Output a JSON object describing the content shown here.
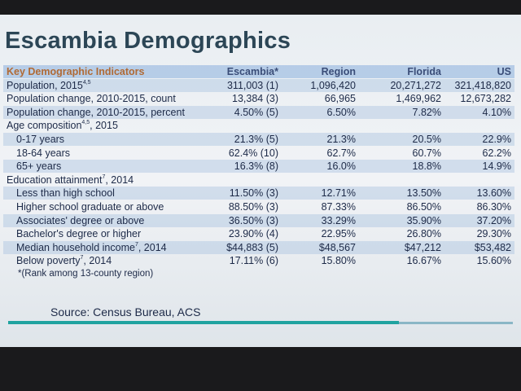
{
  "title": "Escambia Demographics",
  "table": {
    "header": [
      "Key Demographic Indicators",
      "Escambia*",
      "Region",
      "Florida",
      "US"
    ],
    "rows": [
      {
        "label": "Population, 2015",
        "sup": "4,5",
        "cells": [
          "311,003 (1)",
          "1,096,420",
          "20,271,272",
          "321,418,820"
        ]
      },
      {
        "label": "Population change, 2010-2015, count",
        "cells": [
          "13,384 (3)",
          "66,965",
          "1,469,962",
          "12,673,282"
        ]
      },
      {
        "label": "Population change, 2010-2015, percent",
        "cells": [
          "4.50% (5)",
          "6.50%",
          "7.82%",
          "4.10%"
        ]
      },
      {
        "label": "Age composition",
        "sup": "4,5",
        "suffix": ", 2015"
      },
      {
        "label": "0-17 years",
        "indent": true,
        "cells": [
          "21.3% (5)",
          "21.3%",
          "20.5%",
          "22.9%"
        ]
      },
      {
        "label": "18-64 years",
        "indent": true,
        "cells": [
          "62.4% (10)",
          "62.7%",
          "60.7%",
          "62.2%"
        ]
      },
      {
        "label": "65+ years",
        "indent": true,
        "cells": [
          "16.3% (8)",
          "16.0%",
          "18.8%",
          "14.9%"
        ]
      },
      {
        "label": "Education attainment",
        "sup": "7",
        "suffix": ", 2014"
      },
      {
        "label": "Less than high school",
        "indent": true,
        "cells": [
          "11.50% (3)",
          "12.71%",
          "13.50%",
          "13.60%"
        ]
      },
      {
        "label": "Higher school graduate or above",
        "indent": true,
        "cells": [
          "88.50% (3)",
          "87.33%",
          "86.50%",
          "86.30%"
        ]
      },
      {
        "label": "Associates' degree or above",
        "indent": true,
        "cells": [
          "36.50% (3)",
          "33.29%",
          "35.90%",
          "37.20%"
        ]
      },
      {
        "label": "Bachelor's degree or higher",
        "indent": true,
        "cells": [
          "23.90% (4)",
          "22.95%",
          "26.80%",
          "29.30%"
        ]
      },
      {
        "label": "Median household income",
        "sup": "7",
        "suffix": ", 2014",
        "indent": true,
        "cells": [
          "$44,883 (5)",
          "$48,567",
          "$47,212",
          "$53,482"
        ]
      },
      {
        "label": "Below poverty",
        "sup": "7",
        "suffix": ", 2014",
        "indent": true,
        "cells": [
          "17.11% (6)",
          "15.80%",
          "16.67%",
          "15.60%"
        ]
      }
    ],
    "footnote": "*(Rank among 13-county region)"
  },
  "source": "Source: Census Bureau, ACS"
}
